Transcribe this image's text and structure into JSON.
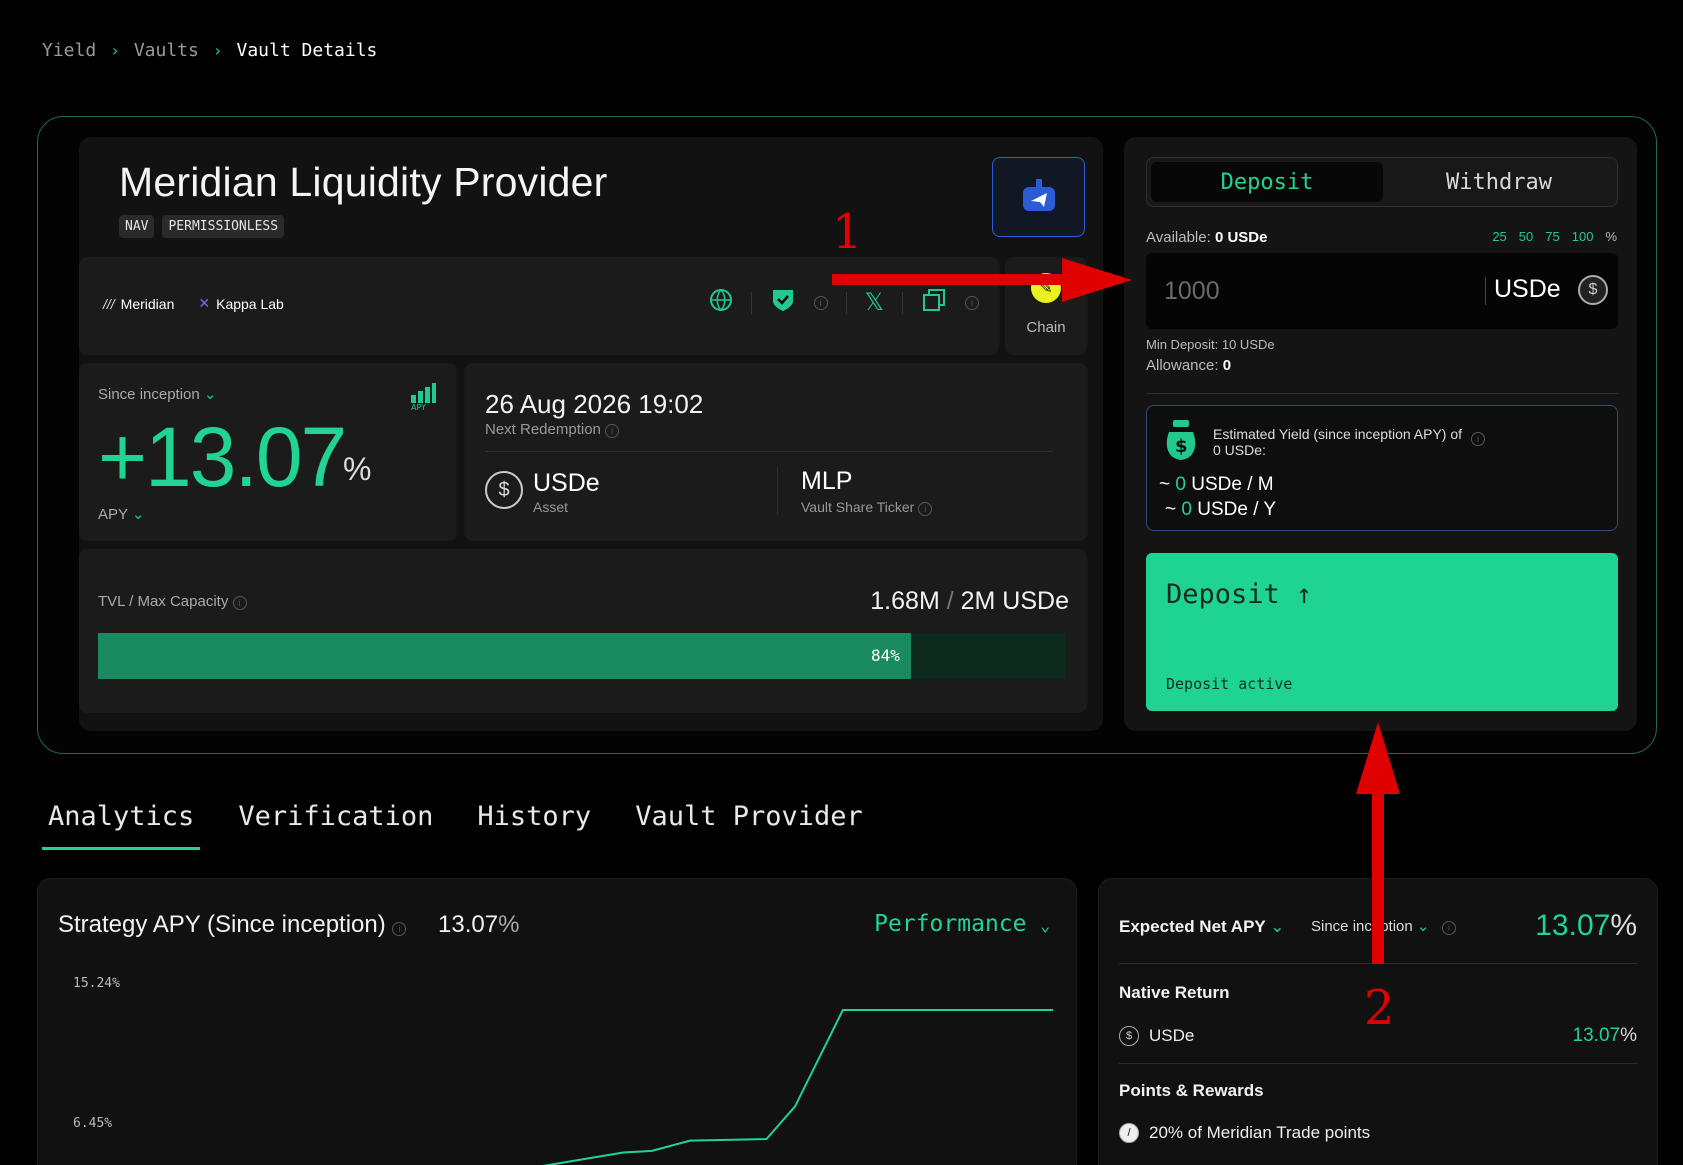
{
  "breadcrumb": {
    "items": [
      "Yield",
      "Vaults",
      "Vault Details"
    ]
  },
  "vault": {
    "title": "Meridian Liquidity Provider",
    "tags": [
      "NAV",
      "PERMISSIONLESS"
    ],
    "partners": [
      "Meridian",
      "Kappa Lab"
    ],
    "chain_label": "Chain"
  },
  "apy": {
    "period": "Since inception",
    "value": "+13.07",
    "unit": "%",
    "label": "APY"
  },
  "redemption": {
    "date": "26 Aug 2026 19:02",
    "label": "Next Redemption",
    "asset": "USDe",
    "asset_label": "Asset",
    "ticker": "MLP",
    "ticker_label": "Vault Share Ticker"
  },
  "tvl": {
    "label": "TVL / Max Capacity",
    "current": "1.68M",
    "max": "2M USDe",
    "fill_fraction": 0.84,
    "percent_text": "84%"
  },
  "deposit_panel": {
    "tabs": [
      "Deposit",
      "Withdraw"
    ],
    "available_label": "Available:",
    "available_value": "0 USDe",
    "percent_options": [
      "25",
      "50",
      "75",
      "100"
    ],
    "percent_sign": "%",
    "amount_placeholder": "1000",
    "unit": "USDe",
    "min_deposit": "Min Deposit: 10 USDe",
    "allowance_label": "Allowance:",
    "allowance_value": "0",
    "estimate_title": "Estimated Yield (since inception APY) of 0 USDe:",
    "estimate_month_prefix": "~",
    "estimate_month_value": "0",
    "estimate_month_unit": "USDe / M",
    "estimate_year_prefix": "~",
    "estimate_year_value": "0",
    "estimate_year_unit": "USDe / Y",
    "deposit_button": "Deposit ↑",
    "deposit_status": "Deposit active"
  },
  "tabs": [
    "Analytics",
    "Verification",
    "History",
    "Vault Provider"
  ],
  "strategy": {
    "title": "Strategy APY (Since inception)",
    "value": "13.07",
    "unit": "%",
    "mode": "Performance"
  },
  "chart_data": {
    "type": "line",
    "ytick_labels": [
      "15.24%",
      "6.45%"
    ],
    "y_ticks": [
      15.24,
      6.45
    ],
    "x_fraction": [
      0.45,
      0.55,
      0.58,
      0.62,
      0.7,
      0.73,
      0.78,
      1.0
    ],
    "y": [
      4.6,
      5.6,
      5.7,
      6.35,
      6.45,
      8.5,
      14.55,
      14.55
    ],
    "color": "#22d493"
  },
  "net_apy": {
    "title": "Expected Net APY",
    "period": "Since inception",
    "value": "13.07",
    "unit": "%",
    "native_return_label": "Native Return",
    "native_asset": "USDe",
    "native_value": "13.07",
    "points_label": "Points & Rewards",
    "points_item": "20% of Meridian Trade points"
  },
  "annotations": [
    "1",
    "2"
  ],
  "colors": {
    "accent": "#22d493",
    "annotation": "#e00000",
    "robot": "#2c5bd6"
  }
}
